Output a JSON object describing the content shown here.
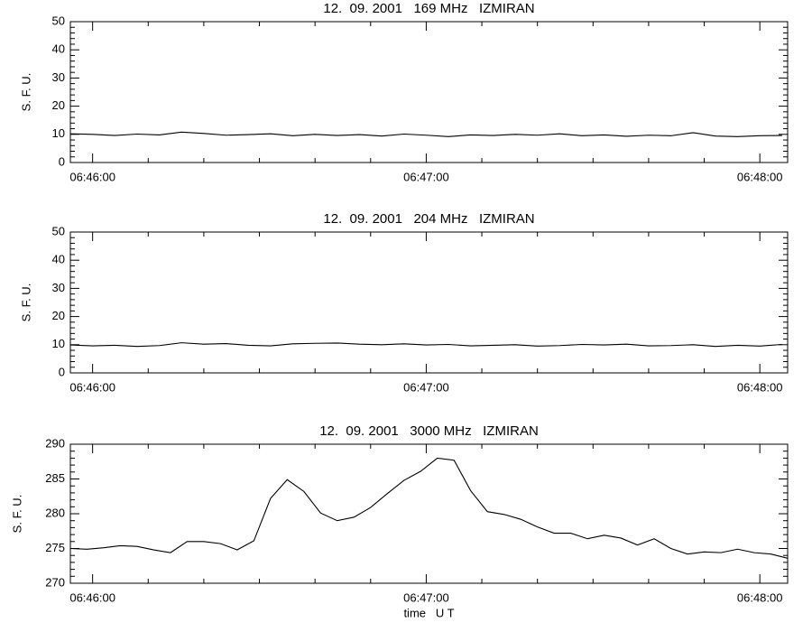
{
  "chart_data": [
    {
      "type": "line",
      "title": "12.  09. 2001   169 MHz   IZMIRAN",
      "ylabel": "S. F. U.",
      "color": "#000000",
      "x": [
        "06:45:56",
        "06:46:00",
        "06:46:04",
        "06:46:08",
        "06:46:12",
        "06:46:16",
        "06:46:20",
        "06:46:24",
        "06:46:28",
        "06:46:32",
        "06:46:36",
        "06:46:40",
        "06:46:44",
        "06:46:48",
        "06:46:52",
        "06:46:56",
        "06:47:00",
        "06:47:04",
        "06:47:08",
        "06:47:12",
        "06:47:16",
        "06:47:20",
        "06:47:24",
        "06:47:28",
        "06:47:32",
        "06:47:36",
        "06:47:40",
        "06:47:44",
        "06:47:48",
        "06:47:52",
        "06:47:56",
        "06:48:00",
        "06:48:04"
      ],
      "values": [
        10.2,
        10.0,
        9.6,
        10.1,
        9.8,
        10.8,
        10.3,
        9.7,
        9.9,
        10.2,
        9.5,
        10.0,
        9.6,
        9.9,
        9.4,
        10.1,
        9.7,
        9.2,
        9.8,
        9.6,
        10.0,
        9.7,
        10.2,
        9.5,
        9.8,
        9.3,
        9.7,
        9.5,
        10.6,
        9.4,
        9.2,
        9.5,
        9.6
      ],
      "xlim": [
        "06:45:56",
        "06:48:05"
      ],
      "ylim": [
        0,
        50
      ],
      "xticks": [
        "06:46:00",
        "06:47:00",
        "06:48:00"
      ],
      "yticks": [
        0,
        10,
        20,
        30,
        40,
        50
      ]
    },
    {
      "type": "line",
      "title": "12.  09. 2001   204 MHz   IZMIRAN",
      "ylabel": "S. F. U.",
      "color": "#000000",
      "x": [
        "06:45:56",
        "06:46:00",
        "06:46:04",
        "06:46:08",
        "06:46:12",
        "06:46:16",
        "06:46:20",
        "06:46:24",
        "06:46:28",
        "06:46:32",
        "06:46:36",
        "06:46:40",
        "06:46:44",
        "06:46:48",
        "06:46:52",
        "06:46:56",
        "06:47:00",
        "06:47:04",
        "06:47:08",
        "06:47:12",
        "06:47:16",
        "06:47:20",
        "06:47:24",
        "06:47:28",
        "06:47:32",
        "06:47:36",
        "06:47:40",
        "06:47:44",
        "06:47:48",
        "06:47:52",
        "06:47:56",
        "06:48:00",
        "06:48:04"
      ],
      "values": [
        9.9,
        9.6,
        9.8,
        9.4,
        9.7,
        10.7,
        10.2,
        10.4,
        9.8,
        9.6,
        10.3,
        10.5,
        10.6,
        10.2,
        10.0,
        10.3,
        9.9,
        10.1,
        9.6,
        9.8,
        10.0,
        9.5,
        9.7,
        10.1,
        9.9,
        10.2,
        9.6,
        9.7,
        10.0,
        9.4,
        9.8,
        9.5,
        10.1
      ],
      "xlim": [
        "06:45:56",
        "06:48:05"
      ],
      "ylim": [
        0,
        50
      ],
      "xticks": [
        "06:46:00",
        "06:47:00",
        "06:48:00"
      ],
      "yticks": [
        0,
        10,
        20,
        30,
        40,
        50
      ]
    },
    {
      "type": "line",
      "title": "12.  09. 2001   3000 MHz   IZMIRAN",
      "ylabel": "S. F. U.",
      "xlabel": "time   U T",
      "color": "#000000",
      "x": [
        "06:45:56",
        "06:45:59",
        "06:46:02",
        "06:46:05",
        "06:46:08",
        "06:46:11",
        "06:46:14",
        "06:46:17",
        "06:46:20",
        "06:46:23",
        "06:46:26",
        "06:46:29",
        "06:46:32",
        "06:46:35",
        "06:46:38",
        "06:46:41",
        "06:46:44",
        "06:46:47",
        "06:46:50",
        "06:46:53",
        "06:46:56",
        "06:46:59",
        "06:47:02",
        "06:47:05",
        "06:47:08",
        "06:47:11",
        "06:47:14",
        "06:47:17",
        "06:47:20",
        "06:47:23",
        "06:47:26",
        "06:47:29",
        "06:47:32",
        "06:47:35",
        "06:47:38",
        "06:47:41",
        "06:47:44",
        "06:47:47",
        "06:47:50",
        "06:47:53",
        "06:47:56",
        "06:47:59",
        "06:48:02",
        "06:48:05"
      ],
      "values": [
        275.0,
        274.9,
        275.1,
        275.4,
        275.3,
        274.8,
        274.4,
        276.0,
        276.0,
        275.7,
        274.8,
        276.1,
        282.2,
        284.9,
        283.2,
        280.1,
        279.0,
        279.5,
        280.9,
        282.9,
        284.8,
        286.1,
        288.0,
        287.7,
        283.3,
        280.3,
        279.9,
        279.2,
        278.1,
        277.2,
        277.2,
        276.4,
        276.9,
        276.5,
        275.5,
        276.4,
        275.0,
        274.2,
        274.5,
        274.4,
        274.9,
        274.4,
        274.2,
        273.6
      ],
      "xlim": [
        "06:45:56",
        "06:48:05"
      ],
      "ylim": [
        270,
        290
      ],
      "xticks": [
        "06:46:00",
        "06:47:00",
        "06:48:00"
      ],
      "yticks": [
        270,
        275,
        280,
        285,
        290
      ]
    }
  ]
}
